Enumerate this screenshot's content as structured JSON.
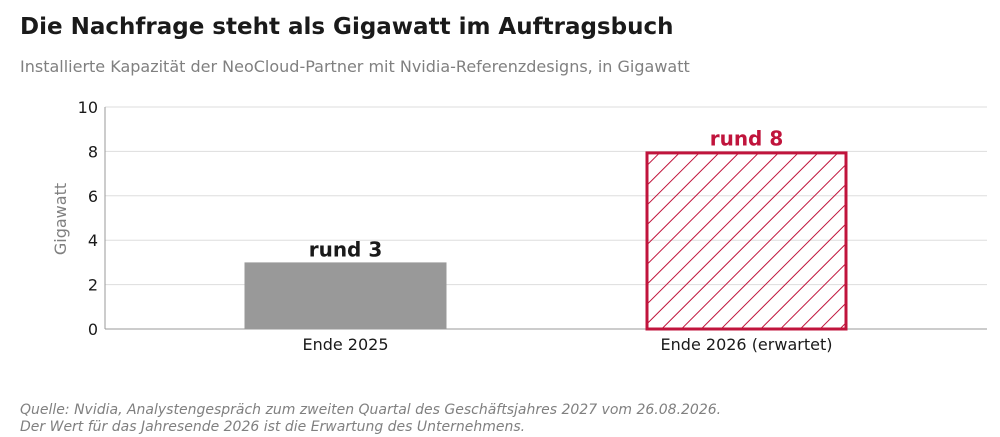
{
  "title": "Die Nachfrage steht als Gigawatt im Auftragsbuch",
  "subtitle": "Installierte Kapazität der NeoCloud-Partner mit Nvidia-Referenzdesigns, in Gigawatt",
  "source": {
    "line1": "Quelle: Nvidia, Analystengespräch zum zweiten Quartal des Geschäftsjahres 2027 vom 26.08.2026.",
    "line2": "Der Wert für das Jahresende 2026 ist die Erwartung des Unternehmens."
  },
  "colors": {
    "actual": "#999999",
    "expected": "#c0143c",
    "grid": "#dddddd",
    "axis": "#999999"
  },
  "chart_data": {
    "type": "bar",
    "categories": [
      "Ende 2025",
      "Ende 2026 (erwartet)"
    ],
    "values": [
      3,
      8
    ],
    "data_labels": [
      "rund 3",
      "rund 8"
    ],
    "bar_styles": [
      "solid",
      "hatched"
    ],
    "ylabel": "Gigawatt",
    "ylim": [
      0,
      10
    ],
    "yticks": [
      0,
      2,
      4,
      6,
      8,
      10
    ],
    "grid": true
  }
}
